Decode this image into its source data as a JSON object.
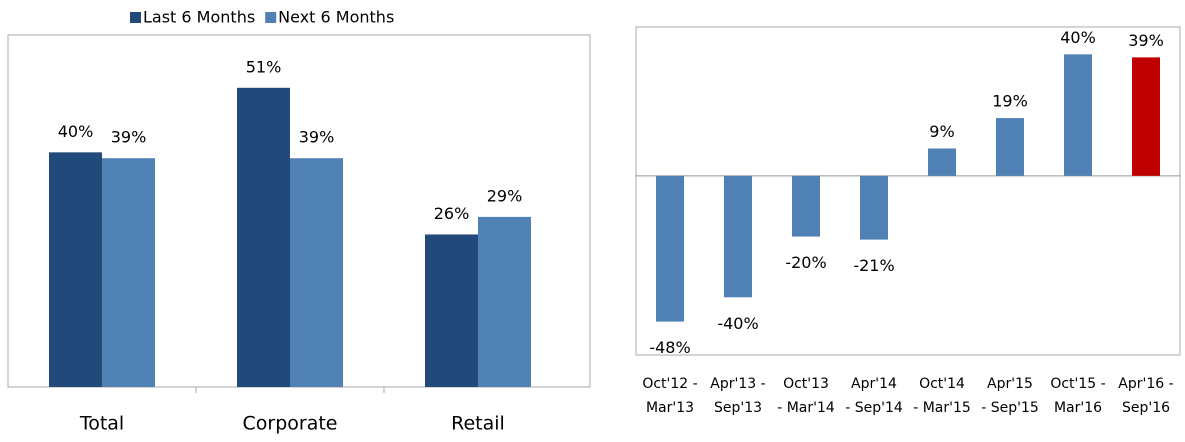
{
  "chart_data": [
    {
      "type": "bar",
      "categories": [
        "Total",
        "Corporate",
        "Retail"
      ],
      "series": [
        {
          "name": "Last 6 Months",
          "color": "#214a7b",
          "values": [
            40,
            51,
            26
          ],
          "value_labels": [
            "40%",
            "51%",
            "26%"
          ]
        },
        {
          "name": "Next 6 Months",
          "color": "#4f81b4",
          "values": [
            39,
            39,
            29
          ],
          "value_labels": [
            "39%",
            "39%",
            "29%"
          ]
        }
      ],
      "ylim": [
        0,
        60
      ],
      "legend": "top"
    },
    {
      "type": "bar",
      "categories": [
        [
          "Oct'12 -",
          "Mar'13"
        ],
        [
          "Apr'13 -",
          "Sep'13"
        ],
        [
          "Oct'13",
          "- Mar'14"
        ],
        [
          "Apr'14",
          "- Sep'14"
        ],
        [
          "Oct'14",
          "- Mar'15"
        ],
        [
          "Apr'15",
          "- Sep'15"
        ],
        [
          "Oct'15 -",
          "Mar'16"
        ],
        [
          "Apr'16 -",
          "Sep'16"
        ]
      ],
      "values": [
        -48,
        -40,
        -20,
        -21,
        9,
        19,
        40,
        39
      ],
      "value_labels": [
        "-48%",
        "-40%",
        "-20%",
        "-21%",
        "9%",
        "19%",
        "40%",
        "39%"
      ],
      "colors": [
        "#4f81b4",
        "#4f81b4",
        "#4f81b4",
        "#4f81b4",
        "#4f81b4",
        "#4f81b4",
        "#4f81b4",
        "#c00000"
      ],
      "ylim": [
        -59,
        49
      ]
    }
  ]
}
